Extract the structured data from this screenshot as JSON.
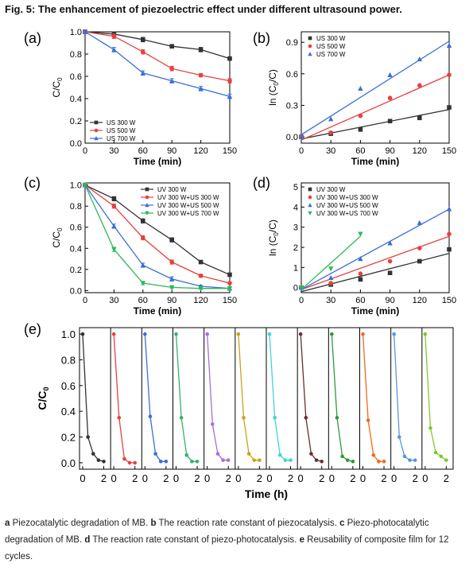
{
  "figure": {
    "title": "Fig. 5: The enhancement of piezoelectric effect under different ultrasound power."
  },
  "colors": {
    "black": "#333333",
    "red": "#e8403f",
    "blue": "#3b6fd8",
    "green": "#2db85a",
    "twelve_cycles": [
      "#333333",
      "#e8403f",
      "#3b6fd8",
      "#34b36a",
      "#a86fd8",
      "#c9a21e",
      "#3fd6d3",
      "#6b2f2f",
      "#2e9a3a",
      "#ef6a1f",
      "#5b96d8",
      "#7ccc2a"
    ]
  },
  "chart_data": [
    {
      "panel": "(a)",
      "type": "line",
      "x": [
        0,
        30,
        60,
        90,
        120,
        150
      ],
      "xlabel": "Time (min)",
      "ylabel": "C/C0",
      "xlim": [
        0,
        150
      ],
      "ylim": [
        0,
        1.0
      ],
      "xticks": [
        "0",
        "30",
        "60",
        "90",
        "120",
        "150"
      ],
      "yticks": [
        "0.0",
        "0.2",
        "0.4",
        "0.6",
        "0.8",
        "1.0"
      ],
      "legend_position": "bottom-left",
      "error_bars": true,
      "series": [
        {
          "name": "US 300 W",
          "color": "#333333",
          "marker": "square",
          "values": [
            1.0,
            0.98,
            0.93,
            0.87,
            0.84,
            0.76
          ],
          "errors": [
            0.01,
            0.02,
            0.02,
            0.015,
            0.02,
            0.015
          ]
        },
        {
          "name": "US 500 W",
          "color": "#e8403f",
          "marker": "circle",
          "values": [
            1.0,
            0.96,
            0.82,
            0.67,
            0.61,
            0.56
          ],
          "errors": [
            0.01,
            0.02,
            0.02,
            0.02,
            0.015,
            0.02
          ]
        },
        {
          "name": "US 700 W",
          "color": "#3b6fd8",
          "marker": "triangle",
          "values": [
            1.0,
            0.84,
            0.63,
            0.56,
            0.49,
            0.42
          ],
          "errors": [
            0.01,
            0.02,
            0.02,
            0.02,
            0.02,
            0.02
          ]
        }
      ]
    },
    {
      "panel": "(b)",
      "type": "scatter",
      "x": [
        0,
        30,
        60,
        90,
        120,
        150
      ],
      "xlabel": "Time (min)",
      "ylabel": "ln (C0/C)",
      "xlim": [
        0,
        150
      ],
      "ylim": [
        -0.06,
        1.0
      ],
      "xticks": [
        "0",
        "30",
        "60",
        "90",
        "120",
        "150"
      ],
      "yticks": [
        {
          "v": 0,
          "label": "0.0"
        },
        {
          "v": 0.3,
          "label": "0.3"
        },
        {
          "v": 0.6,
          "label": "0.6"
        },
        {
          "v": 0.9,
          "label": "0.9"
        }
      ],
      "legend_position": "top-left",
      "fit_lines": true,
      "series": [
        {
          "name": "US 300 W",
          "color": "#333333",
          "marker": "square",
          "values": [
            0.0,
            0.03,
            0.07,
            0.15,
            0.18,
            0.28
          ],
          "fit": [
            -0.02,
            0.26
          ]
        },
        {
          "name": "US 500 W",
          "color": "#e8403f",
          "marker": "circle",
          "values": [
            0.0,
            0.04,
            0.2,
            0.37,
            0.49,
            0.59
          ],
          "fit": [
            -0.03,
            0.59
          ]
        },
        {
          "name": "US 700 W",
          "color": "#3b6fd8",
          "marker": "triangle",
          "values": [
            0.0,
            0.17,
            0.46,
            0.59,
            0.74,
            0.87
          ],
          "fit": [
            0.02,
            0.91
          ]
        }
      ]
    },
    {
      "panel": "(c)",
      "type": "line",
      "x": [
        0,
        30,
        60,
        90,
        120,
        150
      ],
      "xlabel": "Time (min)",
      "ylabel": "C/C0",
      "xlim": [
        0,
        150
      ],
      "ylim": [
        -0.02,
        1.02
      ],
      "xticks": [
        "0",
        "30",
        "60",
        "90",
        "120",
        "150"
      ],
      "yticks": [
        {
          "v": 0,
          "label": "0.0"
        },
        {
          "v": 0.2,
          "label": "0.2"
        },
        {
          "v": 0.4,
          "label": "0.4"
        },
        {
          "v": 0.6,
          "label": "0.6"
        },
        {
          "v": 0.8,
          "label": "0.8"
        },
        {
          "v": 1.0,
          "label": "1.0"
        }
      ],
      "legend_position": "top-right",
      "error_bars": true,
      "series": [
        {
          "name": "UV 300 W",
          "color": "#333333",
          "marker": "square",
          "values": [
            1.0,
            0.87,
            0.66,
            0.48,
            0.27,
            0.15
          ],
          "errors": [
            0.01,
            0.02,
            0.02,
            0.02,
            0.015,
            0.01
          ]
        },
        {
          "name": "UV 300 W+US 300 W",
          "color": "#e8403f",
          "marker": "circle",
          "values": [
            1.0,
            0.8,
            0.5,
            0.27,
            0.14,
            0.07
          ],
          "errors": [
            0.01,
            0.02,
            0.02,
            0.02,
            0.015,
            0.01
          ]
        },
        {
          "name": "UV 300 W+US 500 W",
          "color": "#3b6fd8",
          "marker": "triangle",
          "values": [
            1.0,
            0.61,
            0.24,
            0.11,
            0.04,
            0.02
          ],
          "errors": [
            0.01,
            0.02,
            0.02,
            0.02,
            0.01,
            0.01
          ]
        },
        {
          "name": "UV 300 W+US 700 W",
          "color": "#2db85a",
          "marker": "triangle-down",
          "values": [
            1.0,
            0.39,
            0.07,
            0.03,
            0.02,
            0.02
          ],
          "errors": [
            0.01,
            0.02,
            0.015,
            0.01,
            0.01,
            0.01
          ]
        }
      ]
    },
    {
      "panel": "(d)",
      "type": "scatter",
      "xlabel": "Time (min)",
      "ylabel": "ln (C0/C)",
      "xlim": [
        0,
        150
      ],
      "ylim": [
        -0.25,
        5.2
      ],
      "xticks": [
        "0",
        "30",
        "60",
        "90",
        "120",
        "150"
      ],
      "yticks": [
        {
          "v": 0,
          "label": "0"
        },
        {
          "v": 1,
          "label": "1"
        },
        {
          "v": 2,
          "label": "2"
        },
        {
          "v": 3,
          "label": "3"
        },
        {
          "v": 4,
          "label": "4"
        },
        {
          "v": 5,
          "label": "5"
        }
      ],
      "legend_position": "top-left",
      "fit_lines": true,
      "series": [
        {
          "name": "UV 300 W",
          "color": "#333333",
          "marker": "square",
          "x": [
            0,
            30,
            60,
            90,
            120,
            150
          ],
          "values": [
            0.0,
            0.15,
            0.41,
            0.73,
            1.31,
            1.9
          ],
          "fit_x": [
            0,
            150
          ],
          "fit": [
            -0.2,
            1.7
          ]
        },
        {
          "name": "UV 300 W+US 300 W",
          "color": "#e8403f",
          "marker": "circle",
          "x": [
            0,
            30,
            60,
            90,
            120,
            150
          ],
          "values": [
            0.0,
            0.22,
            0.69,
            1.31,
            1.96,
            2.66
          ],
          "fit_x": [
            0,
            150
          ],
          "fit": [
            -0.1,
            2.55
          ]
        },
        {
          "name": "UV 300 W+US 500 W",
          "color": "#3b6fd8",
          "marker": "triangle",
          "x": [
            0,
            30,
            60,
            90,
            120,
            150
          ],
          "values": [
            0.0,
            0.49,
            1.43,
            2.21,
            3.22,
            3.91
          ],
          "fit_x": [
            0,
            150
          ],
          "fit": [
            -0.1,
            3.9
          ]
        },
        {
          "name": "UV 300 W+US 700 W",
          "color": "#2db85a",
          "marker": "triangle-down",
          "x": [
            0,
            30,
            60
          ],
          "values": [
            0.0,
            0.94,
            2.66
          ],
          "fit_x": [
            0,
            60
          ],
          "fit": [
            -0.1,
            2.55
          ]
        }
      ]
    },
    {
      "panel": "(e)",
      "type": "line",
      "xlabel": "Time (h)",
      "ylabel": "C/C0",
      "ylim": [
        -0.05,
        1.05
      ],
      "yticks": [
        {
          "v": 0,
          "label": "0.0"
        },
        {
          "v": 0.2,
          "label": "0.2"
        },
        {
          "v": 0.4,
          "label": "0.4"
        },
        {
          "v": 0.6,
          "label": "0.6"
        },
        {
          "v": 0.8,
          "label": "0.8"
        },
        {
          "v": 1.0,
          "label": "1.0"
        }
      ],
      "cycle_xlim": [
        0,
        2.5
      ],
      "cycle_xticks": [
        "0",
        "2"
      ],
      "cycles": 12,
      "x": [
        0,
        0.5,
        1.0,
        1.5,
        2.0
      ],
      "series": [
        {
          "values": [
            1.0,
            0.2,
            0.07,
            0.02,
            0.01
          ]
        },
        {
          "values": [
            1.0,
            0.35,
            0.03,
            0.0,
            0.0
          ]
        },
        {
          "values": [
            1.0,
            0.36,
            0.07,
            0.01,
            0.01
          ]
        },
        {
          "values": [
            1.0,
            0.35,
            0.06,
            0.01,
            0.01
          ]
        },
        {
          "values": [
            1.0,
            0.3,
            0.07,
            0.02,
            0.02
          ]
        },
        {
          "values": [
            1.0,
            0.35,
            0.07,
            0.02,
            0.02
          ]
        },
        {
          "values": [
            1.0,
            0.35,
            0.06,
            0.02,
            0.02
          ]
        },
        {
          "values": [
            1.0,
            0.35,
            0.07,
            0.02,
            0.01
          ]
        },
        {
          "values": [
            1.0,
            0.35,
            0.05,
            0.02,
            0.01
          ]
        },
        {
          "values": [
            1.0,
            0.33,
            0.06,
            0.01,
            0.01
          ]
        },
        {
          "values": [
            1.0,
            0.2,
            0.05,
            0.02,
            0.02
          ]
        },
        {
          "values": [
            1.0,
            0.27,
            0.08,
            0.05,
            0.02
          ]
        }
      ]
    }
  ],
  "caption": [
    {
      "bold": "a",
      "text": " Piezocatalytic degradation of MB. "
    },
    {
      "bold": "b",
      "text": " The reaction rate constant of piezocatalysis. "
    },
    {
      "bold": "c",
      "text": " Piezo-photocatalytic degradation of MB. "
    },
    {
      "bold": "d",
      "text": " The reaction rate constant of piezo-photocatalysis. "
    },
    {
      "bold": "e",
      "text": " Reusability of composite film for 12 cycles."
    }
  ]
}
